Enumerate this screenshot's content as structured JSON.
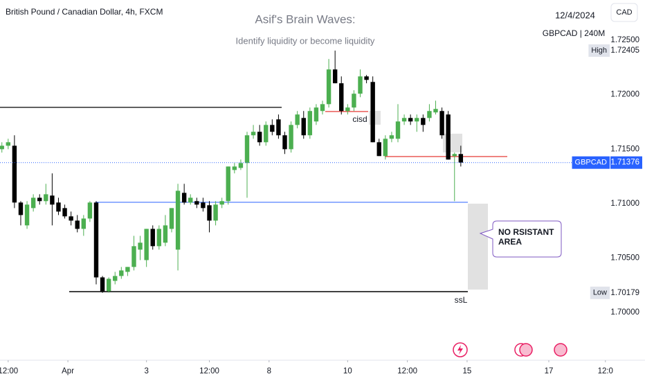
{
  "chart_data": {
    "type": "candlestick",
    "symbol": "British Pound / Canadian Dollar, 4h, FXCM",
    "title": "Asif's Brain Waves:",
    "subtitle": "Identify liquidity or become liquidity",
    "date": "12/4/2024",
    "ticker_info": "GBPCAD | 240M",
    "currency": "CAD",
    "annotations": [
      "cisd",
      "ssL",
      "NO RSISTANT AREA"
    ],
    "up_color": "#4caf50",
    "down_color": "#000000",
    "open": [
      1.71499,
      1.71531,
      1.71531,
      1.71009,
      1.70799,
      1.70958,
      1.71053,
      1.71022,
      1.71073,
      1.71009,
      1.70958,
      1.70882,
      1.70843,
      1.70767,
      1.70862,
      1.71009,
      1.70321,
      1.70194,
      1.70289,
      1.70334,
      1.70372,
      1.70417,
      1.70576,
      1.7048,
      1.70767,
      1.70608,
      1.7064,
      1.70767,
      1.70576,
      1.71098,
      1.71009,
      1.71022,
      1.71009,
      1.70984,
      1.70843,
      1.7099,
      1.71022,
      1.71308,
      1.71327,
      1.71372,
      1.71627,
      1.71659,
      1.71563,
      1.71722,
      1.71773,
      1.71627,
      1.71499,
      1.71722,
      1.71786,
      1.71627,
      1.71754,
      1.7185,
      1.71913,
      1.72232,
      1.72105,
      1.7185,
      1.71882,
      1.72009,
      1.72168,
      1.72117,
      1.71563,
      1.71436,
      1.71595,
      1.71595,
      1.71754,
      1.71786,
      1.71754,
      1.71786,
      1.71786,
      1.71837,
      1.7185,
      1.71818,
      1.71436,
      1.71455
    ],
    "high": [
      1.71563,
      1.71595,
      1.71627,
      1.71022,
      1.71022,
      1.71085,
      1.71085,
      1.71181,
      1.71277,
      1.71053,
      1.7099,
      1.70926,
      1.70894,
      1.70894,
      1.71022,
      1.71022,
      1.70334,
      1.70321,
      1.70372,
      1.70417,
      1.70417,
      1.70703,
      1.70703,
      1.70767,
      1.70799,
      1.70799,
      1.70894,
      1.70958,
      1.71181,
      1.71181,
      1.71085,
      1.71053,
      1.71053,
      1.71022,
      1.71022,
      1.71053,
      1.7134,
      1.71372,
      1.71404,
      1.71659,
      1.71722,
      1.71722,
      1.71754,
      1.71773,
      1.71818,
      1.71659,
      1.71754,
      1.7185,
      1.7185,
      1.71882,
      1.71913,
      1.71945,
      1.72328,
      1.72405,
      1.72168,
      1.71913,
      1.72041,
      1.72232,
      1.72181,
      1.72168,
      1.71595,
      1.71627,
      1.71659,
      1.71913,
      1.71818,
      1.71818,
      1.71818,
      1.71818,
      1.71913,
      1.71945,
      1.71882,
      1.7185,
      1.71468,
      1.71531
    ],
    "low": [
      1.71468,
      1.71499,
      1.70958,
      1.70799,
      1.70767,
      1.70926,
      1.7099,
      1.7099,
      1.70799,
      1.70894,
      1.70862,
      1.70799,
      1.70735,
      1.70703,
      1.70831,
      1.70257,
      1.70179,
      1.70181,
      1.70257,
      1.70308,
      1.70334,
      1.70385,
      1.7048,
      1.70417,
      1.70576,
      1.70576,
      1.70608,
      1.70735,
      1.70385,
      1.7099,
      1.7099,
      1.70958,
      1.70926,
      1.70735,
      1.70799,
      1.70958,
      1.7099,
      1.71277,
      1.71308,
      1.71053,
      1.71595,
      1.71531,
      1.71531,
      1.71627,
      1.71595,
      1.71455,
      1.71468,
      1.71691,
      1.71595,
      1.71595,
      1.71722,
      1.71818,
      1.71882,
      1.72105,
      1.71818,
      1.71818,
      1.7185,
      1.71977,
      1.72105,
      1.71563,
      1.71436,
      1.71404,
      1.71563,
      1.71563,
      1.71722,
      1.71722,
      1.71659,
      1.71659,
      1.71754,
      1.71818,
      1.71595,
      1.71404,
      1.71022,
      1.7134
    ],
    "close": [
      1.71531,
      1.71563,
      1.71009,
      1.70894,
      1.7099,
      1.71053,
      1.71022,
      1.71085,
      1.7099,
      1.70926,
      1.70882,
      1.70843,
      1.70767,
      1.70862,
      1.71009,
      1.70321,
      1.70194,
      1.70308,
      1.70334,
      1.70385,
      1.70417,
      1.70608,
      1.7064,
      1.70767,
      1.70608,
      1.70767,
      1.70799,
      1.70958,
      1.71117,
      1.71009,
      1.71053,
      1.7099,
      1.70958,
      1.70843,
      1.7099,
      1.71022,
      1.7134,
      1.7134,
      1.71372,
      1.71627,
      1.71659,
      1.71563,
      1.71722,
      1.71659,
      1.71627,
      1.71499,
      1.71722,
      1.71818,
      1.71627,
      1.7185,
      1.71882,
      1.71913,
      1.72232,
      1.72105,
      1.7185,
      1.71882,
      1.72009,
      1.72168,
      1.72136,
      1.71563,
      1.71436,
      1.71595,
      1.71627,
      1.71754,
      1.71786,
      1.71754,
      1.71786,
      1.71722,
      1.7185,
      1.71869,
      1.71627,
      1.71404,
      1.71455,
      1.71376
    ],
    "price_labels": [
      {
        "name": "High",
        "value": 1.72405,
        "color": "#e0e3eb"
      },
      {
        "name": "GBPCAD",
        "value": 1.71376,
        "color": "#2962ff"
      },
      {
        "name": "Low",
        "value": 1.70179,
        "color": "#e0e3eb"
      }
    ],
    "ylim": [
      1.6956,
      1.7287
    ],
    "yticks": [
      {
        "value": 1.725,
        "label": "1.72500"
      },
      {
        "value": 1.72,
        "label": "1.72000"
      },
      {
        "value": 1.715,
        "label": "1.71500"
      },
      {
        "value": 1.71,
        "label": "1.71000"
      },
      {
        "value": 1.705,
        "label": "1.70500"
      },
      {
        "value": 1.7,
        "label": "1.70000"
      }
    ],
    "xlim": [
      -0.3,
      102.3
    ],
    "xticks": [
      {
        "value": 1,
        "label": "12:00"
      },
      {
        "value": 10.5,
        "label": "Apr"
      },
      {
        "value": 23,
        "label": "3"
      },
      {
        "value": 33,
        "label": "12:00"
      },
      {
        "value": 42.5,
        "label": "8"
      },
      {
        "value": 55,
        "label": "10"
      },
      {
        "value": 64.5,
        "label": "12:00"
      },
      {
        "value": 74,
        "label": "15"
      },
      {
        "value": 87,
        "label": "17"
      },
      {
        "value": 96,
        "label": "12:0"
      }
    ],
    "grid": false
  }
}
